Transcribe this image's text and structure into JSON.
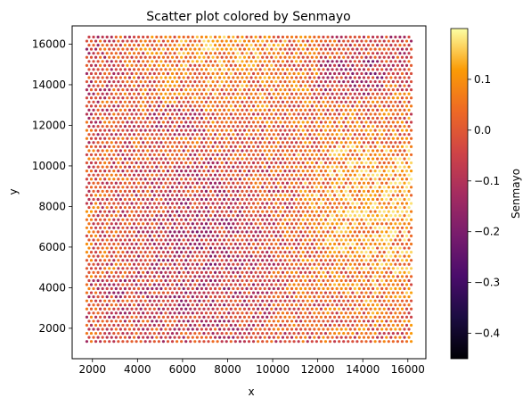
{
  "chart_data": {
    "type": "scatter",
    "title": "Scatter plot colored by Senmayo",
    "xlabel": "x",
    "ylabel": "y",
    "xlim": [
      1100,
      16800
    ],
    "ylim": [
      500,
      16900
    ],
    "xticks": [
      2000,
      4000,
      6000,
      8000,
      10000,
      12000,
      14000,
      16000
    ],
    "xtick_labels": [
      "2000",
      "4000",
      "6000",
      "8000",
      "10000",
      "12000",
      "14000",
      "16000"
    ],
    "yticks": [
      2000,
      4000,
      6000,
      8000,
      10000,
      12000,
      14000,
      16000
    ],
    "ytick_labels": [
      "2000",
      "4000",
      "6000",
      "8000",
      "10000",
      "12000",
      "14000",
      "16000"
    ],
    "grid": false,
    "colormap": "inferno",
    "colorbar": {
      "label": "Senmayo",
      "vmin": -0.45,
      "vmax": 0.2,
      "ticks": [
        0.1,
        0.0,
        -0.1,
        -0.2,
        -0.3,
        -0.4
      ],
      "tick_labels": [
        "0.1",
        "0.0",
        "−0.1",
        "−0.2",
        "−0.3",
        "−0.4"
      ]
    },
    "points": {
      "x_range": [
        1750,
        16150
      ],
      "y_range": [
        1350,
        16450
      ],
      "x_spacing": 200,
      "y_spacing": 200,
      "alternate_row_offset": 100,
      "value_typical": 0.0,
      "value_range": [
        -0.43,
        0.18
      ]
    }
  }
}
